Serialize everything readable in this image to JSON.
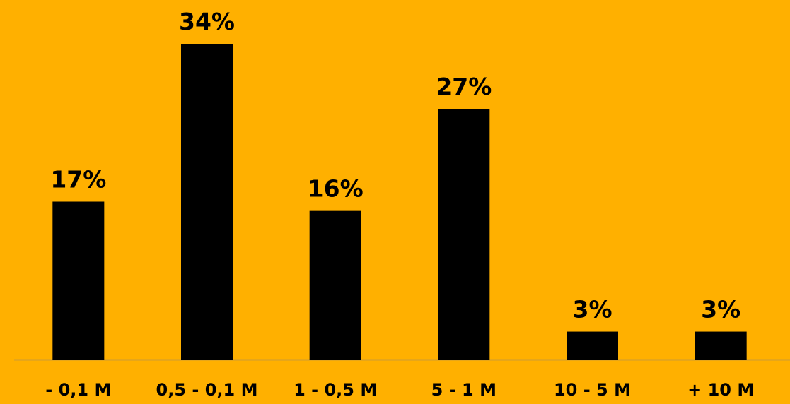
{
  "colors": {
    "background": "#FFB000",
    "bar": "#000000",
    "text": "#000000",
    "axis": "#9a8a66"
  },
  "chart_data": {
    "type": "bar",
    "categories": [
      "- 0,1 M",
      "0,5 - 0,1 M",
      "1 - 0,5 M",
      "5 - 1 M",
      "10 - 5 M",
      "+ 10 M"
    ],
    "values": [
      17,
      34,
      16,
      27,
      3,
      3
    ],
    "value_labels": [
      "17%",
      "34%",
      "16%",
      "27%",
      "3%",
      "3%"
    ],
    "title": "",
    "xlabel": "",
    "ylabel": "",
    "ylim": [
      0,
      34
    ],
    "grid": false,
    "legend": "none"
  }
}
